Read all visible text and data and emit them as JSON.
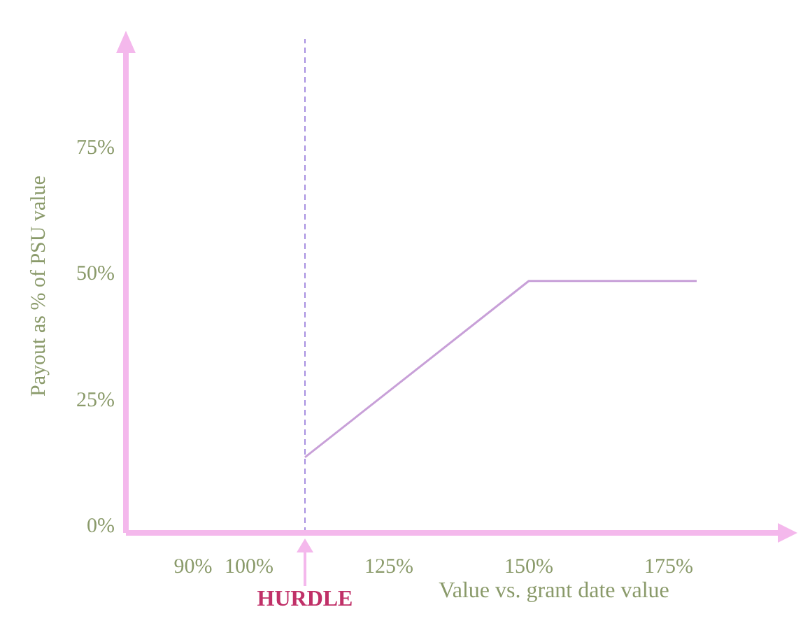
{
  "chart_data": {
    "type": "line",
    "xlabel": "Value vs. grant date value",
    "ylabel": "Payout as % of PSU value",
    "x": [
      110,
      150,
      180
    ],
    "series": [
      {
        "color": "#c8a0d8",
        "values": [
          15,
          50,
          50
        ]
      }
    ],
    "xlim": [
      78,
      197
    ],
    "xticks": [
      {
        "value": 90,
        "label": "90%"
      },
      {
        "value": 100,
        "label": "100%"
      },
      {
        "value": 125,
        "label": "125%"
      },
      {
        "value": 150,
        "label": "150%"
      },
      {
        "value": 175,
        "label": "175%"
      }
    ],
    "ylim": [
      0,
      98
    ],
    "yticks": [
      {
        "value": 0,
        "label": "0%"
      },
      {
        "value": 25,
        "label": "25%"
      },
      {
        "value": 50,
        "label": "50%"
      },
      {
        "value": 75,
        "label": "75%"
      }
    ],
    "ref_lines": [
      {
        "axis": "x",
        "value": 110,
        "label": "HURDLE",
        "color": "#a890e0",
        "line_style": "dashed"
      }
    ],
    "grid": false,
    "legend": false,
    "marker": "none",
    "line_style": "solid"
  }
}
